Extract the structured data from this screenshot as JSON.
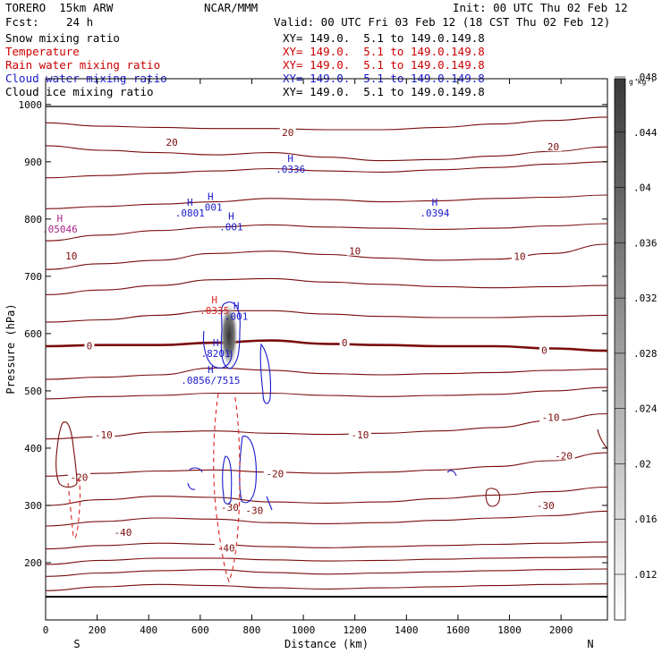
{
  "header": {
    "model": "TORERO  15km ARW",
    "org": "NCAR/MMM",
    "init": "Init: 00 UTC Thu 02 Feb 12",
    "fcst_label": "Fcst:",
    "fcst_value": "24 h",
    "valid": "Valid: 00 UTC Fri 03 Feb 12 (18 CST Thu 02 Feb 12)"
  },
  "fields": [
    {
      "label": "Snow mixing ratio",
      "xy": "XY= 149.0.  5.1 to 149.0.149.8",
      "color": "#000000"
    },
    {
      "label": "Temperature",
      "xy": "XY= 149.0.  5.1 to 149.0.149.8",
      "color": "#cc0000"
    },
    {
      "label": "Rain water mixing ratio",
      "xy": "XY= 149.0.  5.1 to 149.0.149.8",
      "color": "#cc0000"
    },
    {
      "label": "Cloud water mixing ratio",
      "xy": "XY= 149.0.  5.1 to 149.0.149.8",
      "color": "#1a1acc"
    },
    {
      "label": "Cloud ice mixing ratio",
      "xy": "XY= 149.0.  5.1 to 149.0.149.8",
      "color": "#000000"
    }
  ],
  "colors": {
    "temperature": "#7a0c0c",
    "freezing": "#7a0c0c",
    "rain": "#dd2222",
    "cloud": "#1a1acc",
    "text": "#000000"
  },
  "chart_data": {
    "type": "contour",
    "xlabel": "Distance (km)",
    "ylabel": "Pressure (hPa)",
    "xlim": [
      0,
      2180
    ],
    "ylim": [
      1045,
      100
    ],
    "x_ticks": [
      0,
      200,
      400,
      600,
      800,
      1000,
      1200,
      1400,
      1600,
      1800,
      2000
    ],
    "y_ticks": [
      200,
      300,
      400,
      500,
      600,
      700,
      800,
      900,
      1000
    ],
    "x_end_labels": {
      "left": "S",
      "right": "N"
    },
    "colorbar": {
      "unit": "g kg⁻¹",
      "ticks": [
        ".012",
        ".016",
        ".02",
        ".024",
        ".028",
        ".032",
        ".036",
        ".04",
        ".044",
        ".048"
      ]
    },
    "temperature_contours": [
      {
        "level": -40,
        "p": [
          151,
          158,
          162,
          160,
          156,
          154,
          156,
          158,
          160,
          162,
          163
        ]
      },
      {
        "level": -40,
        "p": [
          176,
          182,
          186,
          188,
          183,
          180,
          182,
          184,
          186,
          188,
          189
        ]
      },
      {
        "level": -40,
        "p": [
          197,
          204,
          208,
          208,
          205,
          203,
          204,
          206,
          208,
          209,
          210
        ]
      },
      {
        "level": -40,
        "p": [
          224,
          230,
          234,
          232,
          228,
          226,
          228,
          230,
          232,
          234,
          236
        ]
      },
      {
        "level": -30,
        "p": [
          264,
          272,
          278,
          276,
          270,
          268,
          270,
          274,
          278,
          282,
          290
        ]
      },
      {
        "level": -30,
        "p": [
          300,
          310,
          316,
          314,
          306,
          304,
          306,
          312,
          318,
          324,
          332
        ]
      },
      {
        "level": -20,
        "p": [
          351,
          356,
          360,
          362,
          358,
          356,
          358,
          362,
          368,
          378,
          392
        ]
      },
      {
        "level": -10,
        "p": [
          416,
          420,
          428,
          430,
          426,
          424,
          426,
          430,
          436,
          448,
          460
        ]
      },
      {
        "level": -10,
        "p": [
          486,
          490,
          492,
          496,
          496,
          492,
          490,
          492,
          494,
          500,
          506
        ]
      },
      {
        "level": -10,
        "p": [
          520,
          524,
          528,
          540,
          536,
          530,
          528,
          530,
          532,
          536,
          538
        ]
      },
      {
        "level": 0,
        "p": [
          578,
          580,
          580,
          584,
          588,
          582,
          580,
          578,
          578,
          574,
          570
        ]
      },
      {
        "level": 10,
        "p": [
          620,
          624,
          632,
          640,
          640,
          634,
          630,
          628,
          628,
          630,
          632
        ]
      },
      {
        "level": 10,
        "p": [
          668,
          676,
          684,
          694,
          696,
          690,
          686,
          682,
          680,
          682,
          684
        ]
      },
      {
        "level": 10,
        "p": [
          712,
          722,
          728,
          740,
          744,
          738,
          732,
          728,
          730,
          740,
          756
        ]
      },
      {
        "level": 10,
        "p": [
          762,
          772,
          780,
          786,
          790,
          786,
          784,
          782,
          784,
          788,
          792
        ]
      },
      {
        "level": 10,
        "p": [
          818,
          822,
          826,
          830,
          836,
          834,
          830,
          832,
          836,
          838,
          842
        ]
      },
      {
        "level": 20,
        "p": [
          872,
          876,
          880,
          884,
          888,
          884,
          882,
          886,
          890,
          896,
          900
        ]
      },
      {
        "level": 20,
        "p": [
          928,
          920,
          916,
          912,
          916,
          908,
          902,
          904,
          910,
          918,
          926
        ]
      },
      {
        "level": 20,
        "p": [
          968,
          962,
          960,
          958,
          958,
          956,
          956,
          960,
          966,
          972,
          978
        ]
      }
    ],
    "contour_x_km": [
      0,
      218,
      436,
      654,
      872,
      1090,
      1308,
      1526,
      1744,
      1962,
      2180
    ],
    "contour_labels": [
      {
        "text": "-40",
        "x": 300,
        "p": 253
      },
      {
        "text": "-40",
        "x": 700,
        "p": 226
      },
      {
        "text": "-30",
        "x": 715,
        "p": 297
      },
      {
        "text": "-30",
        "x": 810,
        "p": 291
      },
      {
        "text": "-30",
        "x": 1940,
        "p": 300
      },
      {
        "text": "-20",
        "x": 130,
        "p": 349
      },
      {
        "text": "-20",
        "x": 890,
        "p": 355
      },
      {
        "text": "-20",
        "x": 2010,
        "p": 387
      },
      {
        "text": "-10",
        "x": 225,
        "p": 423
      },
      {
        "text": "-10",
        "x": 1220,
        "p": 423
      },
      {
        "text": "-10",
        "x": 1960,
        "p": 454
      },
      {
        "text": "0",
        "x": 170,
        "p": 579
      },
      {
        "text": "0",
        "x": 1160,
        "p": 584
      },
      {
        "text": "0",
        "x": 1935,
        "p": 571
      },
      {
        "text": "10",
        "x": 100,
        "p": 736
      },
      {
        "text": "10",
        "x": 1200,
        "p": 744
      },
      {
        "text": "10",
        "x": 1840,
        "p": 735
      },
      {
        "text": "20",
        "x": 490,
        "p": 934
      },
      {
        "text": "20",
        "x": 940,
        "p": 951
      },
      {
        "text": "20",
        "x": 1970,
        "p": 926
      }
    ],
    "max_labels": [
      {
        "letter": "H",
        "value": ".0856/7515",
        "x": 640,
        "p": 528
      },
      {
        "letter": "H",
        "value": ".8201",
        "x": 660,
        "p": 575
      },
      {
        "letter": "H",
        "value": ".0335",
        "x": 655,
        "p": 650
      },
      {
        "letter": "H",
        "value": ".001",
        "x": 740,
        "p": 640
      },
      {
        "letter": "H",
        "value": ".0801",
        "x": 560,
        "p": 820
      },
      {
        "letter": "H",
        "value": ".001",
        "x": 640,
        "p": 830
      },
      {
        "letter": "H",
        "value": ".001",
        "x": 720,
        "p": 796
      },
      {
        "letter": "H",
        "value": ".05046",
        "x": 55,
        "p": 792
      },
      {
        "letter": "H",
        "value": ".0394",
        "x": 1510,
        "p": 820
      },
      {
        "letter": "H",
        "value": ".0336",
        "x": 950,
        "p": 897
      }
    ]
  }
}
